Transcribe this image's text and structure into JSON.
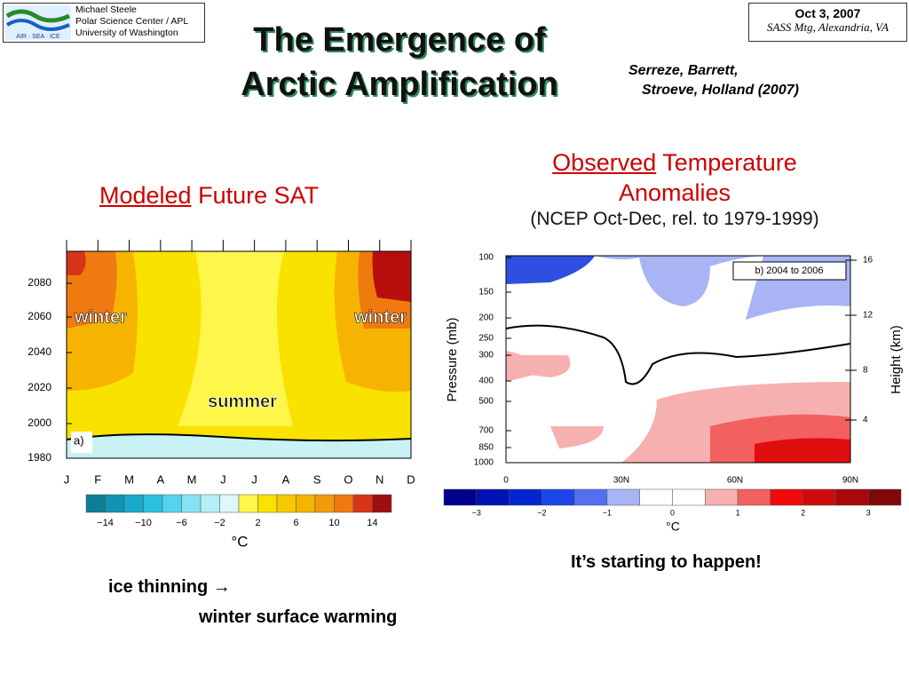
{
  "logo": {
    "text": "AIR · SEA · ICE",
    "lines": [
      "Michael Steele",
      "Polar Science Center / APL",
      "University of Washington"
    ]
  },
  "meeting": {
    "date": "Oct 3, 2007",
    "place": "SASS Mtg, Alexandria, VA"
  },
  "title": [
    "The Emergence of",
    "Arctic Amplification"
  ],
  "citation": [
    "Serreze,  Barrett,",
    "Stroeve, Holland (2007)"
  ],
  "left": {
    "heading_underlined": "Modeled",
    "heading_rest": "Future SAT",
    "years": [
      "2080",
      "2060",
      "2040",
      "2020",
      "2000",
      "1980"
    ],
    "months": [
      "J",
      "F",
      "M",
      "A",
      "M",
      "J",
      "J",
      "A",
      "S",
      "O",
      "N",
      "D"
    ],
    "labels": [
      "winter",
      "winter",
      "summer"
    ],
    "panel": "a)",
    "colorbar": [
      "−14",
      "−10",
      "−6",
      "−2",
      "2",
      "6",
      "10",
      "14"
    ],
    "unit": "°C"
  },
  "right": {
    "heading_underlined": "Observed",
    "heading_rest": "Temperature",
    "heading_line2": "Anomalies",
    "subheading": "(NCEP Oct-Dec, rel. to 1979-1999)",
    "panel": "b) 2004 to 2006",
    "pressure": [
      "100",
      "150",
      "200",
      "250",
      "300",
      "400",
      "500",
      "700",
      "850",
      "1000"
    ],
    "height": [
      "16",
      "12",
      "8",
      "4"
    ],
    "latitudes": [
      "0",
      "30N",
      "60N",
      "90N"
    ],
    "ylabel": "Pressure (mb)",
    "y2label": "Height (km)",
    "colorbar": [
      "−3",
      "−2",
      "−1",
      "0",
      "1",
      "2",
      "3"
    ],
    "unit": "°C",
    "note": "It’s starting to happen!"
  },
  "footer": [
    "ice thinning →",
    "winter surface warming"
  ]
}
